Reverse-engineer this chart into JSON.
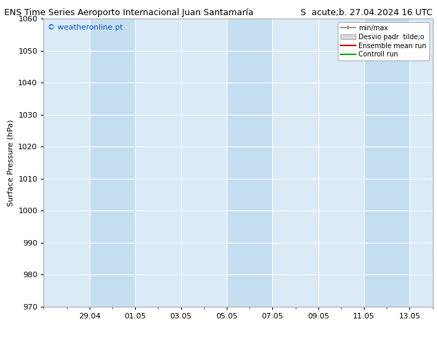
{
  "title_left": "ENS Time Series Aeroporto Internacional Juan Santamaría",
  "title_right": "S  acute;b. 27.04.2024 16 UTC",
  "ylabel": "Surface Pressure (hPa)",
  "watermark": "© weatheronline.pt",
  "ylim": [
    970,
    1060
  ],
  "yticks": [
    970,
    980,
    990,
    1000,
    1010,
    1020,
    1030,
    1040,
    1050,
    1060
  ],
  "xtick_labels": [
    "29.04",
    "01.05",
    "03.05",
    "05.05",
    "07.05",
    "09.05",
    "11.05",
    "13.05"
  ],
  "bg_color": "#ffffff",
  "plot_bg_color": "#daeaf7",
  "shade_color": "#c5dff0",
  "legend_label_minmax": "min/max",
  "legend_label_desvio": "Desvio padr  tilde;o",
  "legend_label_ensemble": "Ensemble mean run",
  "legend_label_control": "Controll run",
  "title_fontsize": 9,
  "axis_fontsize": 8,
  "tick_fontsize": 8,
  "watermark_fontsize": 8
}
